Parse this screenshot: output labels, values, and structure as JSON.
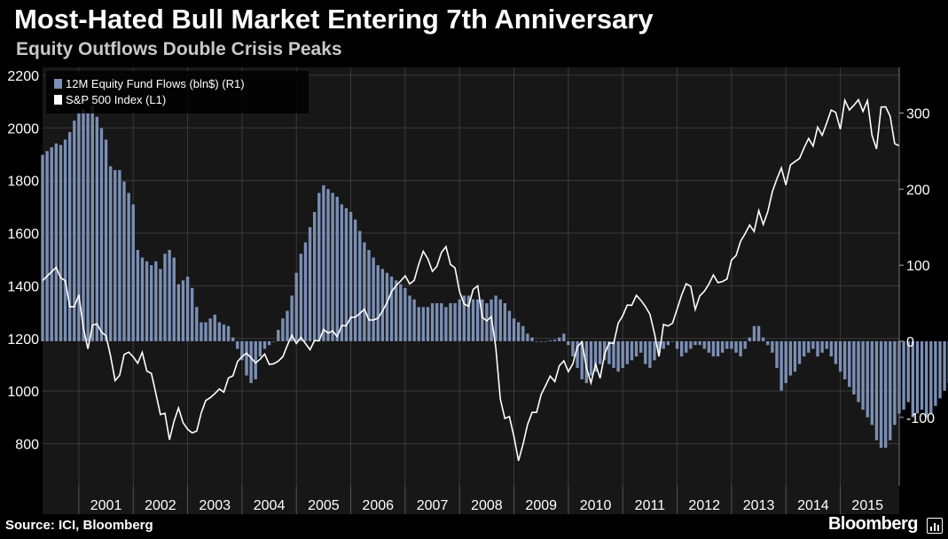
{
  "header": {
    "title": "Most-Hated Bull Market Entering 7th Anniversary",
    "subtitle": "Equity Outflows Double Crisis Peaks"
  },
  "footer": {
    "source": "Source: ICI, Bloomberg",
    "brand": "Bloomberg",
    "brand_icon": "bar-chart-icon"
  },
  "colors": {
    "background": "#000000",
    "plot_background": "#171717",
    "bars": "#7b8fb5",
    "line": "#ffffff",
    "grid": "#3a3a3a"
  },
  "chart_data": {
    "type": "bar+line",
    "x_axis": {
      "tick_labels": [
        "2001",
        "2002",
        "2003",
        "2004",
        "2005",
        "2006",
        "2007",
        "2008",
        "2009",
        "2010",
        "2011",
        "2012",
        "2013",
        "2014",
        "2015"
      ],
      "start": "2000-05",
      "end": "2016-02"
    },
    "left_axis": {
      "ticks": [
        800,
        1000,
        1200,
        1400,
        1600,
        1800,
        2000,
        2200
      ],
      "range": [
        640,
        2230
      ]
    },
    "right_axis": {
      "ticks": [
        -100,
        0,
        100,
        200,
        300
      ],
      "range": [
        -190,
        360
      ]
    },
    "grid": true,
    "legend": {
      "placement": "top-left"
    },
    "series": [
      {
        "name": "12M Equity Fund Flows (bln$)  (R1)",
        "axis": "right",
        "kind": "bar",
        "start": "2000-05",
        "frequency": "monthly",
        "values": [
          245,
          250,
          255,
          260,
          258,
          265,
          275,
          290,
          300,
          305,
          300,
          310,
          295,
          280,
          265,
          230,
          225,
          225,
          210,
          195,
          180,
          120,
          110,
          105,
          100,
          105,
          95,
          115,
          120,
          110,
          75,
          80,
          85,
          70,
          45,
          25,
          25,
          30,
          35,
          25,
          22,
          20,
          5,
          -10,
          -25,
          -45,
          -55,
          -50,
          -20,
          -10,
          -5,
          0,
          15,
          30,
          40,
          60,
          90,
          115,
          130,
          150,
          170,
          195,
          205,
          200,
          195,
          190,
          180,
          175,
          170,
          160,
          145,
          130,
          120,
          110,
          100,
          95,
          90,
          85,
          80,
          75,
          70,
          60,
          55,
          45,
          45,
          45,
          50,
          50,
          50,
          45,
          50,
          50,
          55,
          60,
          60,
          55,
          55,
          55,
          50,
          55,
          60,
          55,
          50,
          40,
          30,
          25,
          20,
          10,
          5,
          0,
          0,
          0,
          1,
          2,
          5,
          10,
          -5,
          -20,
          -35,
          -50,
          -55,
          -45,
          -40,
          -30,
          -25,
          -30,
          -35,
          -40,
          -35,
          -30,
          -25,
          -20,
          -15,
          -30,
          -35,
          -25,
          -15,
          -10,
          -5,
          0,
          -10,
          -20,
          -15,
          -10,
          -5,
          -5,
          -10,
          -15,
          -20,
          -20,
          -15,
          -10,
          -10,
          -15,
          -20,
          -10,
          5,
          20,
          20,
          5,
          -5,
          -15,
          -35,
          -65,
          -55,
          -45,
          -40,
          -30,
          -20,
          -15,
          -10,
          -20,
          -15,
          -10,
          -20,
          -30,
          -40,
          -50,
          -60,
          -70,
          -80,
          -90,
          -100,
          -110,
          -130,
          -140,
          -140,
          -130,
          -110,
          -95,
          -90,
          -80,
          -100,
          -95,
          -90,
          -100,
          -95,
          -85,
          -75,
          -65,
          -55,
          -40,
          -20,
          -10,
          0,
          5,
          30,
          45,
          50,
          80,
          100,
          110,
          145,
          160,
          125,
          110,
          115,
          120,
          120,
          110,
          100,
          90,
          85,
          70,
          55,
          60,
          65,
          55,
          45,
          60,
          75,
          70,
          65,
          55,
          45,
          30,
          5,
          2,
          0,
          -5,
          -10,
          -20,
          -30,
          -40,
          -50,
          -60,
          -80,
          -105,
          -120,
          -140,
          -150,
          -160,
          -155,
          -140
        ]
      },
      {
        "name": "S&P 500 Index  (L1)",
        "axis": "left",
        "kind": "line",
        "points": [
          [
            "2000-05",
            1420
          ],
          [
            "2000-08",
            1470
          ],
          [
            "2000-09",
            1430
          ],
          [
            "2000-10",
            1420
          ],
          [
            "2000-11",
            1320
          ],
          [
            "2000-12",
            1320
          ],
          [
            "2001-01",
            1366
          ],
          [
            "2001-02",
            1240
          ],
          [
            "2001-03",
            1160
          ],
          [
            "2001-04",
            1250
          ],
          [
            "2001-05",
            1255
          ],
          [
            "2001-06",
            1224
          ],
          [
            "2001-07",
            1210
          ],
          [
            "2001-08",
            1133
          ],
          [
            "2001-09",
            1040
          ],
          [
            "2001-10",
            1060
          ],
          [
            "2001-11",
            1139
          ],
          [
            "2001-12",
            1148
          ],
          [
            "2002-01",
            1130
          ],
          [
            "2002-02",
            1106
          ],
          [
            "2002-03",
            1147
          ],
          [
            "2002-04",
            1076
          ],
          [
            "2002-05",
            1067
          ],
          [
            "2002-06",
            990
          ],
          [
            "2002-07",
            911
          ],
          [
            "2002-08",
            916
          ],
          [
            "2002-09",
            815
          ],
          [
            "2002-10",
            885
          ],
          [
            "2002-11",
            936
          ],
          [
            "2002-12",
            880
          ],
          [
            "2003-01",
            855
          ],
          [
            "2003-02",
            841
          ],
          [
            "2003-03",
            848
          ],
          [
            "2003-04",
            917
          ],
          [
            "2003-05",
            964
          ],
          [
            "2003-06",
            975
          ],
          [
            "2003-07",
            990
          ],
          [
            "2003-08",
            1008
          ],
          [
            "2003-09",
            996
          ],
          [
            "2003-10",
            1050
          ],
          [
            "2003-11",
            1058
          ],
          [
            "2003-12",
            1112
          ],
          [
            "2004-01",
            1131
          ],
          [
            "2004-02",
            1144
          ],
          [
            "2004-03",
            1126
          ],
          [
            "2004-04",
            1107
          ],
          [
            "2004-05",
            1121
          ],
          [
            "2004-06",
            1141
          ],
          [
            "2004-07",
            1101
          ],
          [
            "2004-08",
            1104
          ],
          [
            "2004-09",
            1114
          ],
          [
            "2004-10",
            1130
          ],
          [
            "2004-11",
            1174
          ],
          [
            "2004-12",
            1212
          ],
          [
            "2005-01",
            1181
          ],
          [
            "2005-02",
            1204
          ],
          [
            "2005-03",
            1181
          ],
          [
            "2005-04",
            1157
          ],
          [
            "2005-05",
            1192
          ],
          [
            "2005-06",
            1191
          ],
          [
            "2005-07",
            1234
          ],
          [
            "2005-08",
            1220
          ],
          [
            "2005-09",
            1229
          ],
          [
            "2005-10",
            1207
          ],
          [
            "2005-11",
            1249
          ],
          [
            "2005-12",
            1248
          ],
          [
            "2006-01",
            1280
          ],
          [
            "2006-02",
            1281
          ],
          [
            "2006-03",
            1295
          ],
          [
            "2006-04",
            1311
          ],
          [
            "2006-05",
            1270
          ],
          [
            "2006-06",
            1270
          ],
          [
            "2006-07",
            1277
          ],
          [
            "2006-08",
            1304
          ],
          [
            "2006-09",
            1336
          ],
          [
            "2006-10",
            1378
          ],
          [
            "2006-11",
            1401
          ],
          [
            "2006-12",
            1418
          ],
          [
            "2007-01",
            1438
          ],
          [
            "2007-02",
            1407
          ],
          [
            "2007-03",
            1421
          ],
          [
            "2007-04",
            1482
          ],
          [
            "2007-05",
            1531
          ],
          [
            "2007-06",
            1503
          ],
          [
            "2007-07",
            1455
          ],
          [
            "2007-08",
            1474
          ],
          [
            "2007-09",
            1527
          ],
          [
            "2007-10",
            1549
          ],
          [
            "2007-11",
            1481
          ],
          [
            "2007-12",
            1468
          ],
          [
            "2008-01",
            1378
          ],
          [
            "2008-02",
            1331
          ],
          [
            "2008-03",
            1322
          ],
          [
            "2008-04",
            1386
          ],
          [
            "2008-05",
            1400
          ],
          [
            "2008-06",
            1280
          ],
          [
            "2008-07",
            1267
          ],
          [
            "2008-08",
            1283
          ],
          [
            "2008-09",
            1165
          ],
          [
            "2008-10",
            969
          ],
          [
            "2008-11",
            896
          ],
          [
            "2008-12",
            903
          ],
          [
            "2009-01",
            826
          ],
          [
            "2009-02",
            735
          ],
          [
            "2009-03",
            798
          ],
          [
            "2009-04",
            873
          ],
          [
            "2009-05",
            919
          ],
          [
            "2009-06",
            919
          ],
          [
            "2009-07",
            987
          ],
          [
            "2009-08",
            1021
          ],
          [
            "2009-09",
            1057
          ],
          [
            "2009-10",
            1036
          ],
          [
            "2009-11",
            1096
          ],
          [
            "2009-12",
            1115
          ],
          [
            "2010-01",
            1074
          ],
          [
            "2010-02",
            1104
          ],
          [
            "2010-03",
            1169
          ],
          [
            "2010-04",
            1187
          ],
          [
            "2010-05",
            1089
          ],
          [
            "2010-06",
            1031
          ],
          [
            "2010-07",
            1102
          ],
          [
            "2010-08",
            1049
          ],
          [
            "2010-09",
            1141
          ],
          [
            "2010-10",
            1183
          ],
          [
            "2010-11",
            1181
          ],
          [
            "2010-12",
            1258
          ],
          [
            "2011-01",
            1286
          ],
          [
            "2011-02",
            1327
          ],
          [
            "2011-03",
            1326
          ],
          [
            "2011-04",
            1364
          ],
          [
            "2011-05",
            1345
          ],
          [
            "2011-06",
            1321
          ],
          [
            "2011-07",
            1292
          ],
          [
            "2011-08",
            1219
          ],
          [
            "2011-09",
            1131
          ],
          [
            "2011-10",
            1253
          ],
          [
            "2011-11",
            1247
          ],
          [
            "2011-12",
            1258
          ],
          [
            "2012-01",
            1312
          ],
          [
            "2012-02",
            1366
          ],
          [
            "2012-03",
            1408
          ],
          [
            "2012-04",
            1398
          ],
          [
            "2012-05",
            1310
          ],
          [
            "2012-06",
            1362
          ],
          [
            "2012-07",
            1379
          ],
          [
            "2012-08",
            1406
          ],
          [
            "2012-09",
            1441
          ],
          [
            "2012-10",
            1412
          ],
          [
            "2012-11",
            1416
          ],
          [
            "2012-12",
            1426
          ],
          [
            "2013-01",
            1498
          ],
          [
            "2013-02",
            1515
          ],
          [
            "2013-03",
            1569
          ],
          [
            "2013-04",
            1598
          ],
          [
            "2013-05",
            1631
          ],
          [
            "2013-06",
            1606
          ],
          [
            "2013-07",
            1686
          ],
          [
            "2013-08",
            1633
          ],
          [
            "2013-09",
            1682
          ],
          [
            "2013-10",
            1757
          ],
          [
            "2013-11",
            1806
          ],
          [
            "2013-12",
            1848
          ],
          [
            "2014-01",
            1783
          ],
          [
            "2014-02",
            1859
          ],
          [
            "2014-03",
            1872
          ],
          [
            "2014-04",
            1884
          ],
          [
            "2014-05",
            1924
          ],
          [
            "2014-06",
            1960
          ],
          [
            "2014-07",
            1931
          ],
          [
            "2014-08",
            2003
          ],
          [
            "2014-09",
            1972
          ],
          [
            "2014-10",
            2018
          ],
          [
            "2014-11",
            2068
          ],
          [
            "2014-12",
            2059
          ],
          [
            "2015-01",
            1995
          ],
          [
            "2015-02",
            2105
          ],
          [
            "2015-03",
            2068
          ],
          [
            "2015-04",
            2086
          ],
          [
            "2015-05",
            2107
          ],
          [
            "2015-06",
            2063
          ],
          [
            "2015-07",
            2104
          ],
          [
            "2015-08",
            1972
          ],
          [
            "2015-09",
            1920
          ],
          [
            "2015-10",
            2079
          ],
          [
            "2015-11",
            2080
          ],
          [
            "2015-12",
            2044
          ],
          [
            "2016-01",
            1940
          ],
          [
            "2016-02",
            1932
          ]
        ]
      }
    ]
  }
}
